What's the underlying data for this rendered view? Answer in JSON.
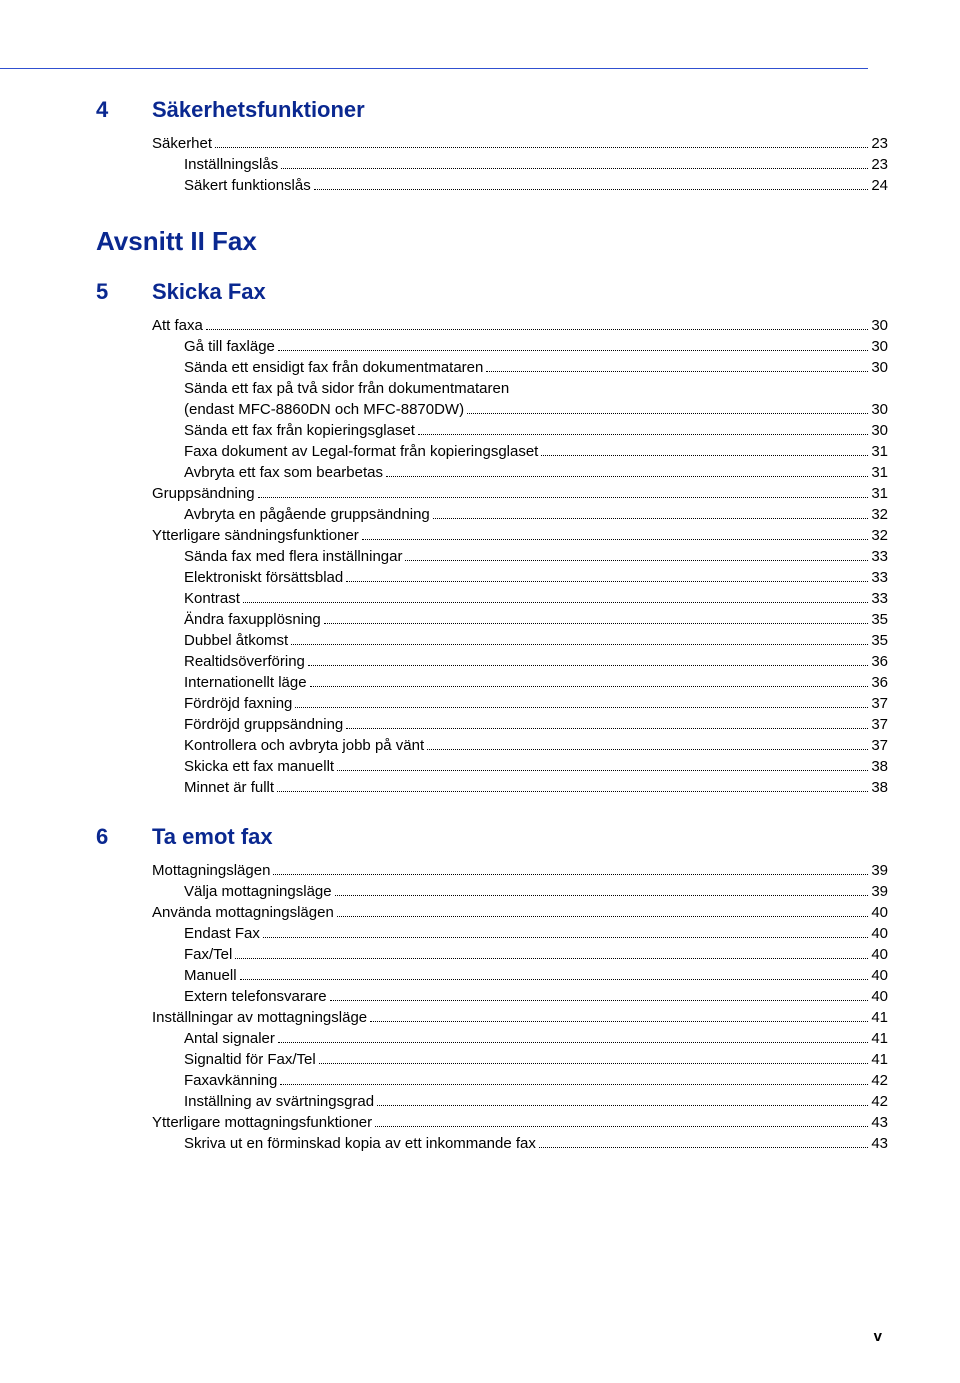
{
  "colors": {
    "heading": "#0a2890",
    "rule": "#3050d0",
    "text": "#000000",
    "background": "#ffffff"
  },
  "fonts": {
    "body_family": "Arial",
    "heading_size_pt": 22,
    "part_size_pt": 26,
    "body_size_pt": 15
  },
  "page_number": "v",
  "sections": [
    {
      "number": "4",
      "title": "Säkerhetsfunktioner",
      "entries": [
        {
          "label": "Säkerhet",
          "page": "23",
          "level": 0
        },
        {
          "label": "Inställningslås",
          "page": "23",
          "level": 1
        },
        {
          "label": "Säkert funktionslås",
          "page": "24",
          "level": 1
        }
      ]
    }
  ],
  "part": {
    "title": "Avsnitt II  Fax"
  },
  "sections_after_part": [
    {
      "number": "5",
      "title": "Skicka Fax",
      "entries": [
        {
          "label": "Att faxa",
          "page": "30",
          "level": 0
        },
        {
          "label": "Gå till faxläge",
          "page": "30",
          "level": 1
        },
        {
          "label": "Sända ett ensidigt fax från dokumentmataren",
          "page": "30",
          "level": 1
        },
        {
          "label": "Sända ett fax på två sidor från dokumentmataren",
          "page": "",
          "level": 1,
          "nobreak": true
        },
        {
          "label": "(endast MFC-8860DN och MFC-8870DW)",
          "page": "30",
          "level": 1
        },
        {
          "label": "Sända ett fax från kopieringsglaset",
          "page": "30",
          "level": 1
        },
        {
          "label": "Faxa dokument av Legal-format från kopieringsglaset",
          "page": "31",
          "level": 1
        },
        {
          "label": "Avbryta ett fax som bearbetas",
          "page": "31",
          "level": 1
        },
        {
          "label": "Gruppsändning",
          "page": "31",
          "level": 0
        },
        {
          "label": "Avbryta en pågående gruppsändning",
          "page": "32",
          "level": 1
        },
        {
          "label": "Ytterligare sändningsfunktioner",
          "page": "32",
          "level": 0
        },
        {
          "label": "Sända fax med flera inställningar",
          "page": "33",
          "level": 1
        },
        {
          "label": "Elektroniskt försättsblad",
          "page": "33",
          "level": 1
        },
        {
          "label": "Kontrast",
          "page": "33",
          "level": 1
        },
        {
          "label": "Ändra faxupplösning",
          "page": "35",
          "level": 1
        },
        {
          "label": "Dubbel åtkomst",
          "page": "35",
          "level": 1
        },
        {
          "label": "Realtidsöverföring",
          "page": "36",
          "level": 1
        },
        {
          "label": "Internationellt läge",
          "page": "36",
          "level": 1
        },
        {
          "label": "Fördröjd faxning",
          "page": "37",
          "level": 1
        },
        {
          "label": "Fördröjd gruppsändning",
          "page": "37",
          "level": 1
        },
        {
          "label": "Kontrollera och avbryta jobb på vänt",
          "page": "37",
          "level": 1
        },
        {
          "label": "Skicka ett fax manuellt",
          "page": "38",
          "level": 1
        },
        {
          "label": "Minnet är fullt",
          "page": "38",
          "level": 1
        }
      ],
      "entries_trailing_page_prev": "38"
    },
    {
      "number": "6",
      "title": "Ta emot fax",
      "entries": [
        {
          "label": "Mottagningslägen",
          "page": "39",
          "level": 0
        },
        {
          "label": "Välja mottagningsläge",
          "page": "39",
          "level": 1
        },
        {
          "label": "Använda mottagningslägen",
          "page": "40",
          "level": 0
        },
        {
          "label": "Endast Fax",
          "page": "40",
          "level": 1
        },
        {
          "label": "Fax/Tel",
          "page": "40",
          "level": 1
        },
        {
          "label": "Manuell",
          "page": "40",
          "level": 1
        },
        {
          "label": "Extern telefonsvarare",
          "page": "40",
          "level": 1
        },
        {
          "label": "Inställningar av mottagningsläge",
          "page": "41",
          "level": 0
        },
        {
          "label": "Antal signaler",
          "page": "41",
          "level": 1
        },
        {
          "label": "Signaltid för Fax/Tel",
          "page": "41",
          "level": 1
        },
        {
          "label": "Faxavkänning",
          "page": "42",
          "level": 1
        },
        {
          "label": "Inställning av svärtningsgrad",
          "page": "42",
          "level": 1
        },
        {
          "label": "Ytterligare mottagningsfunktioner",
          "page": "43",
          "level": 0
        },
        {
          "label": "Skriva ut en förminskad kopia av ett inkommande fax",
          "page": "43",
          "level": 1
        }
      ]
    }
  ]
}
